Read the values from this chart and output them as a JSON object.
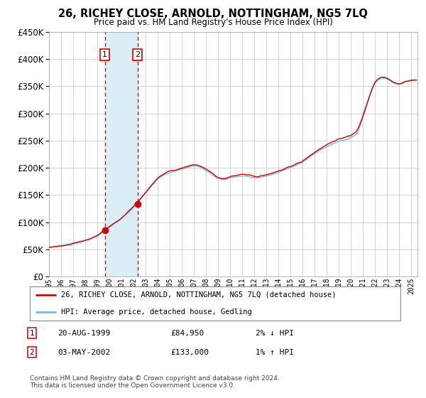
{
  "title": "26, RICHEY CLOSE, ARNOLD, NOTTINGHAM, NG5 7LQ",
  "subtitle": "Price paid vs. HM Land Registry's House Price Index (HPI)",
  "ylim": [
    0,
    450000
  ],
  "yticks": [
    0,
    50000,
    100000,
    150000,
    200000,
    250000,
    300000,
    350000,
    400000,
    450000
  ],
  "sale1_date_num": 1999.622,
  "sale1_price": 84950,
  "sale1_label": "1",
  "sale1_display": "20-AUG-1999",
  "sale1_price_display": "£84,950",
  "sale1_hpi_pct": "2% ↓ HPI",
  "sale2_date_num": 2002.336,
  "sale2_price": 133000,
  "sale2_label": "2",
  "sale2_display": "03-MAY-2002",
  "sale2_price_display": "£133,000",
  "sale2_hpi_pct": "1% ↑ HPI",
  "line_color_hpi": "#7ab8d9",
  "line_color_price": "#cc0000",
  "marker_color": "#cc0000",
  "shade_color": "#daeef8",
  "vline_color": "#cc0000",
  "legend_line1": "26, RICHEY CLOSE, ARNOLD, NOTTINGHAM, NG5 7LQ (detached house)",
  "legend_line2": "HPI: Average price, detached house, Gedling",
  "footer": "Contains HM Land Registry data © Crown copyright and database right 2024.\nThis data is licensed under the Open Government Licence v3.0.",
  "background_color": "#ffffff",
  "grid_color": "#cccccc",
  "xmin": 1995.0,
  "xmax": 2025.5
}
